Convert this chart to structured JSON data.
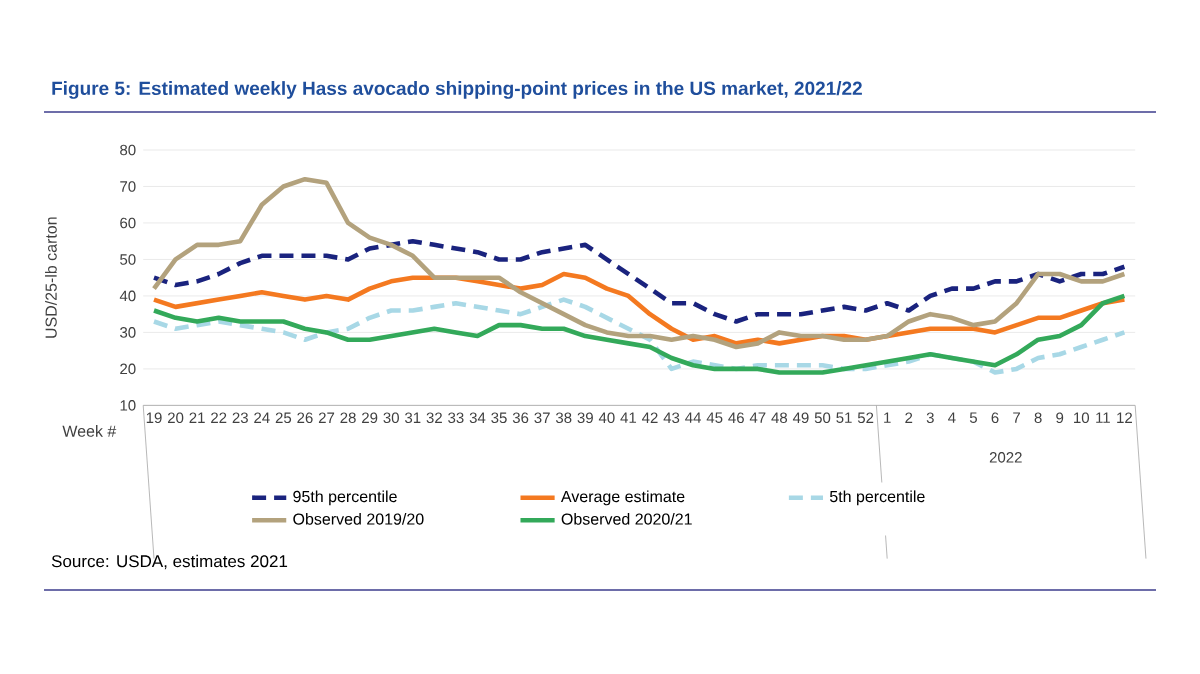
{
  "chart_data": {
    "type": "line",
    "title": "Figure 5: Estimated weekly Hass avocado shipping-point prices in the US market, 2021/22",
    "xlabel": "Week #",
    "ylabel": "USD/25-lb carton",
    "categories": [
      "19",
      "20",
      "21",
      "22",
      "23",
      "24",
      "25",
      "26",
      "27",
      "28",
      "29",
      "30",
      "31",
      "32",
      "33",
      "34",
      "35",
      "36",
      "37",
      "38",
      "39",
      "40",
      "41",
      "42",
      "43",
      "44",
      "45",
      "46",
      "47",
      "48",
      "49",
      "50",
      "51",
      "52",
      "1",
      "2",
      "3",
      "4",
      "5",
      "6",
      "7",
      "8",
      "9",
      "10",
      "11",
      "12"
    ],
    "series": [
      {
        "name": "95th percentile",
        "color": "#1a237e",
        "line_style": "dashed",
        "values": [
          45,
          43,
          44,
          46,
          49,
          51,
          51,
          51,
          51,
          50,
          53,
          54,
          55,
          54,
          53,
          52,
          50,
          50,
          52,
          53,
          54,
          50,
          46,
          42,
          38,
          38,
          35,
          33,
          35,
          35,
          35,
          36,
          37,
          36,
          38,
          36,
          40,
          42,
          42,
          44,
          44,
          46,
          44,
          46,
          46,
          48
        ]
      },
      {
        "name": "Average estimate",
        "color": "#f47920",
        "line_style": "solid",
        "values": [
          39,
          37,
          38,
          39,
          40,
          41,
          40,
          39,
          40,
          39,
          42,
          44,
          45,
          45,
          45,
          44,
          43,
          42,
          43,
          46,
          45,
          42,
          40,
          35,
          31,
          28,
          29,
          27,
          28,
          27,
          28,
          29,
          29,
          28,
          29,
          30,
          31,
          31,
          31,
          30,
          32,
          34,
          34,
          36,
          38,
          39
        ]
      },
      {
        "name": "5th percentile",
        "color": "#a8d8e6",
        "line_style": "dashed",
        "values": [
          33,
          31,
          32,
          33,
          32,
          31,
          30,
          28,
          30,
          31,
          34,
          36,
          36,
          37,
          38,
          37,
          36,
          35,
          37,
          39,
          37,
          34,
          31,
          28,
          20,
          22,
          21,
          20,
          21,
          21,
          21,
          21,
          20,
          20,
          21,
          22,
          24,
          23,
          22,
          19,
          20,
          23,
          24,
          26,
          28,
          30
        ]
      },
      {
        "name": "Observed 2019/20",
        "color": "#b3a27d",
        "line_style": "solid",
        "values": [
          42,
          50,
          54,
          54,
          55,
          65,
          70,
          72,
          71,
          60,
          56,
          54,
          51,
          45,
          45,
          45,
          45,
          41,
          38,
          35,
          32,
          30,
          29,
          29,
          28,
          29,
          28,
          26,
          27,
          30,
          29,
          29,
          28,
          28,
          29,
          33,
          35,
          34,
          32,
          33,
          38,
          46,
          46,
          44,
          44,
          46
        ]
      },
      {
        "name": "Observed 2020/21",
        "color": "#33a95a",
        "line_style": "solid",
        "values": [
          36,
          34,
          33,
          34,
          33,
          33,
          33,
          31,
          30,
          28,
          28,
          29,
          30,
          31,
          30,
          29,
          32,
          32,
          31,
          31,
          29,
          28,
          27,
          26,
          23,
          21,
          20,
          20,
          20,
          19,
          19,
          19,
          20,
          21,
          22,
          23,
          24,
          23,
          22,
          21,
          24,
          28,
          29,
          32,
          38,
          40
        ]
      }
    ],
    "ylim": [
      10,
      80
    ],
    "yticks": [
      10,
      20,
      30,
      40,
      50,
      60,
      70,
      80
    ],
    "grid": "y",
    "legend": "bottom",
    "marker": "none",
    "annotations": [
      "2022",
      "Source: USDA, estimates 2021"
    ]
  }
}
